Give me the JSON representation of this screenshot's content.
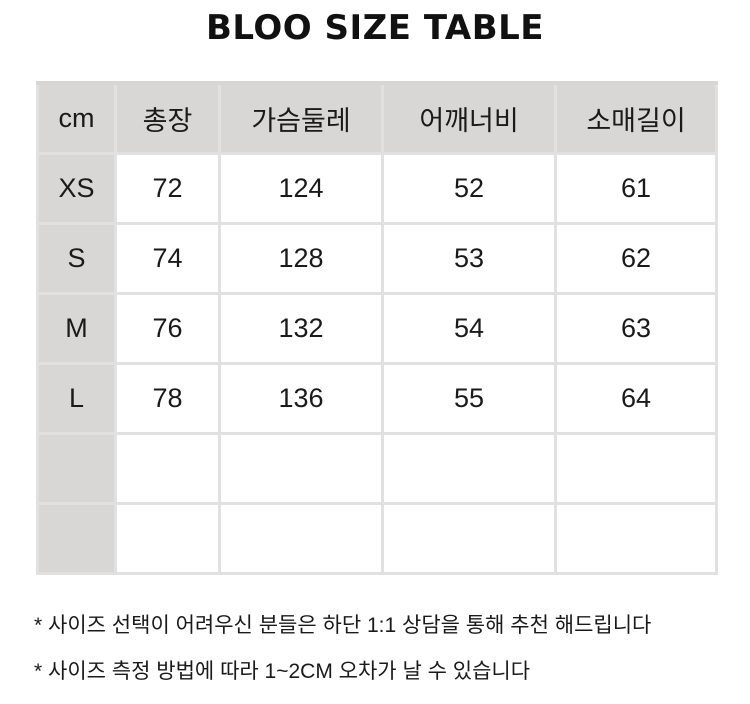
{
  "title": "BLOO SIZE TABLE",
  "table": {
    "headers": [
      "cm",
      "총장",
      "가슴둘레",
      "어깨너비",
      "소매길이"
    ],
    "rows": [
      [
        "XS",
        "72",
        "124",
        "52",
        "61"
      ],
      [
        "S",
        "74",
        "128",
        "53",
        "62"
      ],
      [
        "M",
        "76",
        "132",
        "54",
        "63"
      ],
      [
        "L",
        "78",
        "136",
        "55",
        "64"
      ],
      [
        "",
        "",
        "",
        "",
        ""
      ],
      [
        "",
        "",
        "",
        "",
        ""
      ]
    ]
  },
  "notes": [
    "* 사이즈 선택이 어려우신 분들은 하단 1:1 상담을 통해 추천 해드립니다",
    "* 사이즈 측정 방법에 따라 1~2CM 오차가 날 수 있습니다"
  ],
  "colors": {
    "header_bg": "#d9d6d6",
    "border": "#e1e1e1"
  }
}
